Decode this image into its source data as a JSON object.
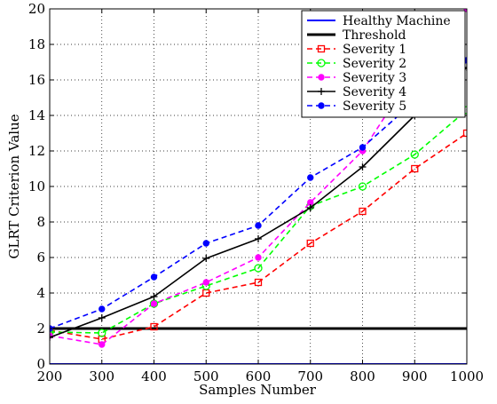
{
  "chart_data": {
    "type": "line",
    "title": "",
    "xlabel": "Samples Number",
    "ylabel": "GLRT Criterion Value",
    "xlim": [
      200,
      1000
    ],
    "ylim": [
      0,
      20
    ],
    "xticks": [
      200,
      300,
      400,
      500,
      600,
      700,
      800,
      900,
      1000
    ],
    "yticks": [
      0,
      2,
      4,
      6,
      8,
      10,
      12,
      14,
      16,
      18,
      20
    ],
    "grid": true,
    "grid_style": "dotted",
    "legend_position": "top-right",
    "x": [
      200,
      300,
      400,
      500,
      600,
      700,
      800,
      900,
      1000
    ],
    "series": [
      {
        "name": "Healthy Machine",
        "color": "#0000ff",
        "dash": "solid",
        "marker": "none",
        "width": 2,
        "values": [
          0,
          0,
          0,
          0,
          0,
          0,
          0,
          0,
          0
        ]
      },
      {
        "name": "Threshold",
        "color": "#000000",
        "dash": "solid",
        "marker": "none",
        "width": 3,
        "values": [
          2,
          2,
          2,
          2,
          2,
          2,
          2,
          2,
          2
        ]
      },
      {
        "name": "Severity 1",
        "color": "#ff0000",
        "dash": "dashed",
        "marker": "square",
        "width": 1.6,
        "values": [
          1.9,
          1.4,
          2.1,
          4.0,
          4.6,
          6.8,
          8.6,
          11.0,
          13.0
        ]
      },
      {
        "name": "Severity 2",
        "color": "#00ff00",
        "dash": "dashed",
        "marker": "circle-open",
        "width": 1.6,
        "values": [
          1.8,
          1.75,
          3.4,
          4.4,
          5.4,
          8.9,
          10.0,
          11.8,
          14.3
        ]
      },
      {
        "name": "Severity 3",
        "color": "#ff00ff",
        "dash": "dashed",
        "marker": "dot",
        "width": 1.6,
        "values": [
          1.6,
          1.1,
          3.4,
          4.6,
          6.0,
          9.1,
          12.0,
          16.5,
          20.0
        ]
      },
      {
        "name": "Severity 4",
        "color": "#000000",
        "dash": "solid",
        "marker": "plus",
        "width": 1.6,
        "values": [
          1.5,
          2.6,
          3.8,
          5.95,
          7.05,
          8.8,
          11.1,
          14.0,
          16.7
        ]
      },
      {
        "name": "Severity 5",
        "color": "#0000ff",
        "dash": "dashed",
        "marker": "dot",
        "width": 1.6,
        "values": [
          2.0,
          3.1,
          4.9,
          6.8,
          7.8,
          10.5,
          12.2,
          14.8,
          17.1
        ]
      }
    ]
  }
}
